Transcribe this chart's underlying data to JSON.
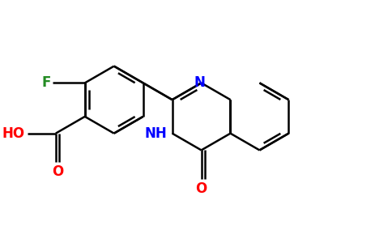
{
  "background_color": "#ffffff",
  "bond_color": "#000000",
  "atom_colors": {
    "F": "#228B22",
    "O": "#FF0000",
    "N": "#0000FF",
    "C": "#000000"
  },
  "figsize": [
    4.84,
    3.0
  ],
  "dpi": 100
}
